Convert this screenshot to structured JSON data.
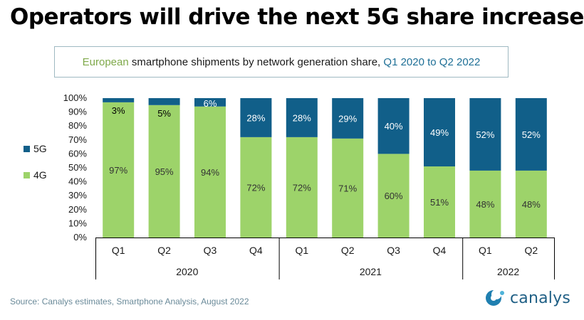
{
  "title": "Operators will drive the next 5G share increase",
  "subtitle": {
    "part1": "European",
    "part2": " smartphone shipments by network generation share, ",
    "part3": "Q1 2020 to Q2 2022"
  },
  "source": "Source: Canalys estimates, Smartphone Analysis, August 2022",
  "logo_text": "canalys",
  "colors": {
    "g4": "#9dd36a",
    "g5": "#115f89",
    "axis": "#000000"
  },
  "chart_data": {
    "type": "bar",
    "stacked": true,
    "categories": [
      "Q1",
      "Q2",
      "Q3",
      "Q4",
      "Q1",
      "Q2",
      "Q3",
      "Q4",
      "Q1",
      "Q2"
    ],
    "groups": [
      {
        "label": "2020",
        "start": 0,
        "end": 3
      },
      {
        "label": "2021",
        "start": 4,
        "end": 7
      },
      {
        "label": "2022",
        "start": 8,
        "end": 9
      }
    ],
    "series": [
      {
        "name": "4G",
        "values": [
          97,
          95,
          94,
          72,
          72,
          71,
          60,
          51,
          48,
          48
        ],
        "labels": [
          "97%",
          "95%",
          "94%",
          "72%",
          "72%",
          "71%",
          "60%",
          "51%",
          "48%",
          "48%"
        ]
      },
      {
        "name": "5G",
        "values": [
          3,
          5,
          6,
          28,
          28,
          29,
          40,
          49,
          52,
          52
        ],
        "labels": [
          "3%",
          "5%",
          "6%",
          "28%",
          "28%",
          "29%",
          "40%",
          "49%",
          "52%",
          "52%"
        ]
      }
    ],
    "yticks": [
      "0%",
      "10%",
      "20%",
      "30%",
      "40%",
      "50%",
      "60%",
      "70%",
      "80%",
      "90%",
      "100%"
    ],
    "ylim": [
      0,
      100
    ],
    "legend": [
      "5G",
      "4G"
    ],
    "legend_position": "left"
  }
}
